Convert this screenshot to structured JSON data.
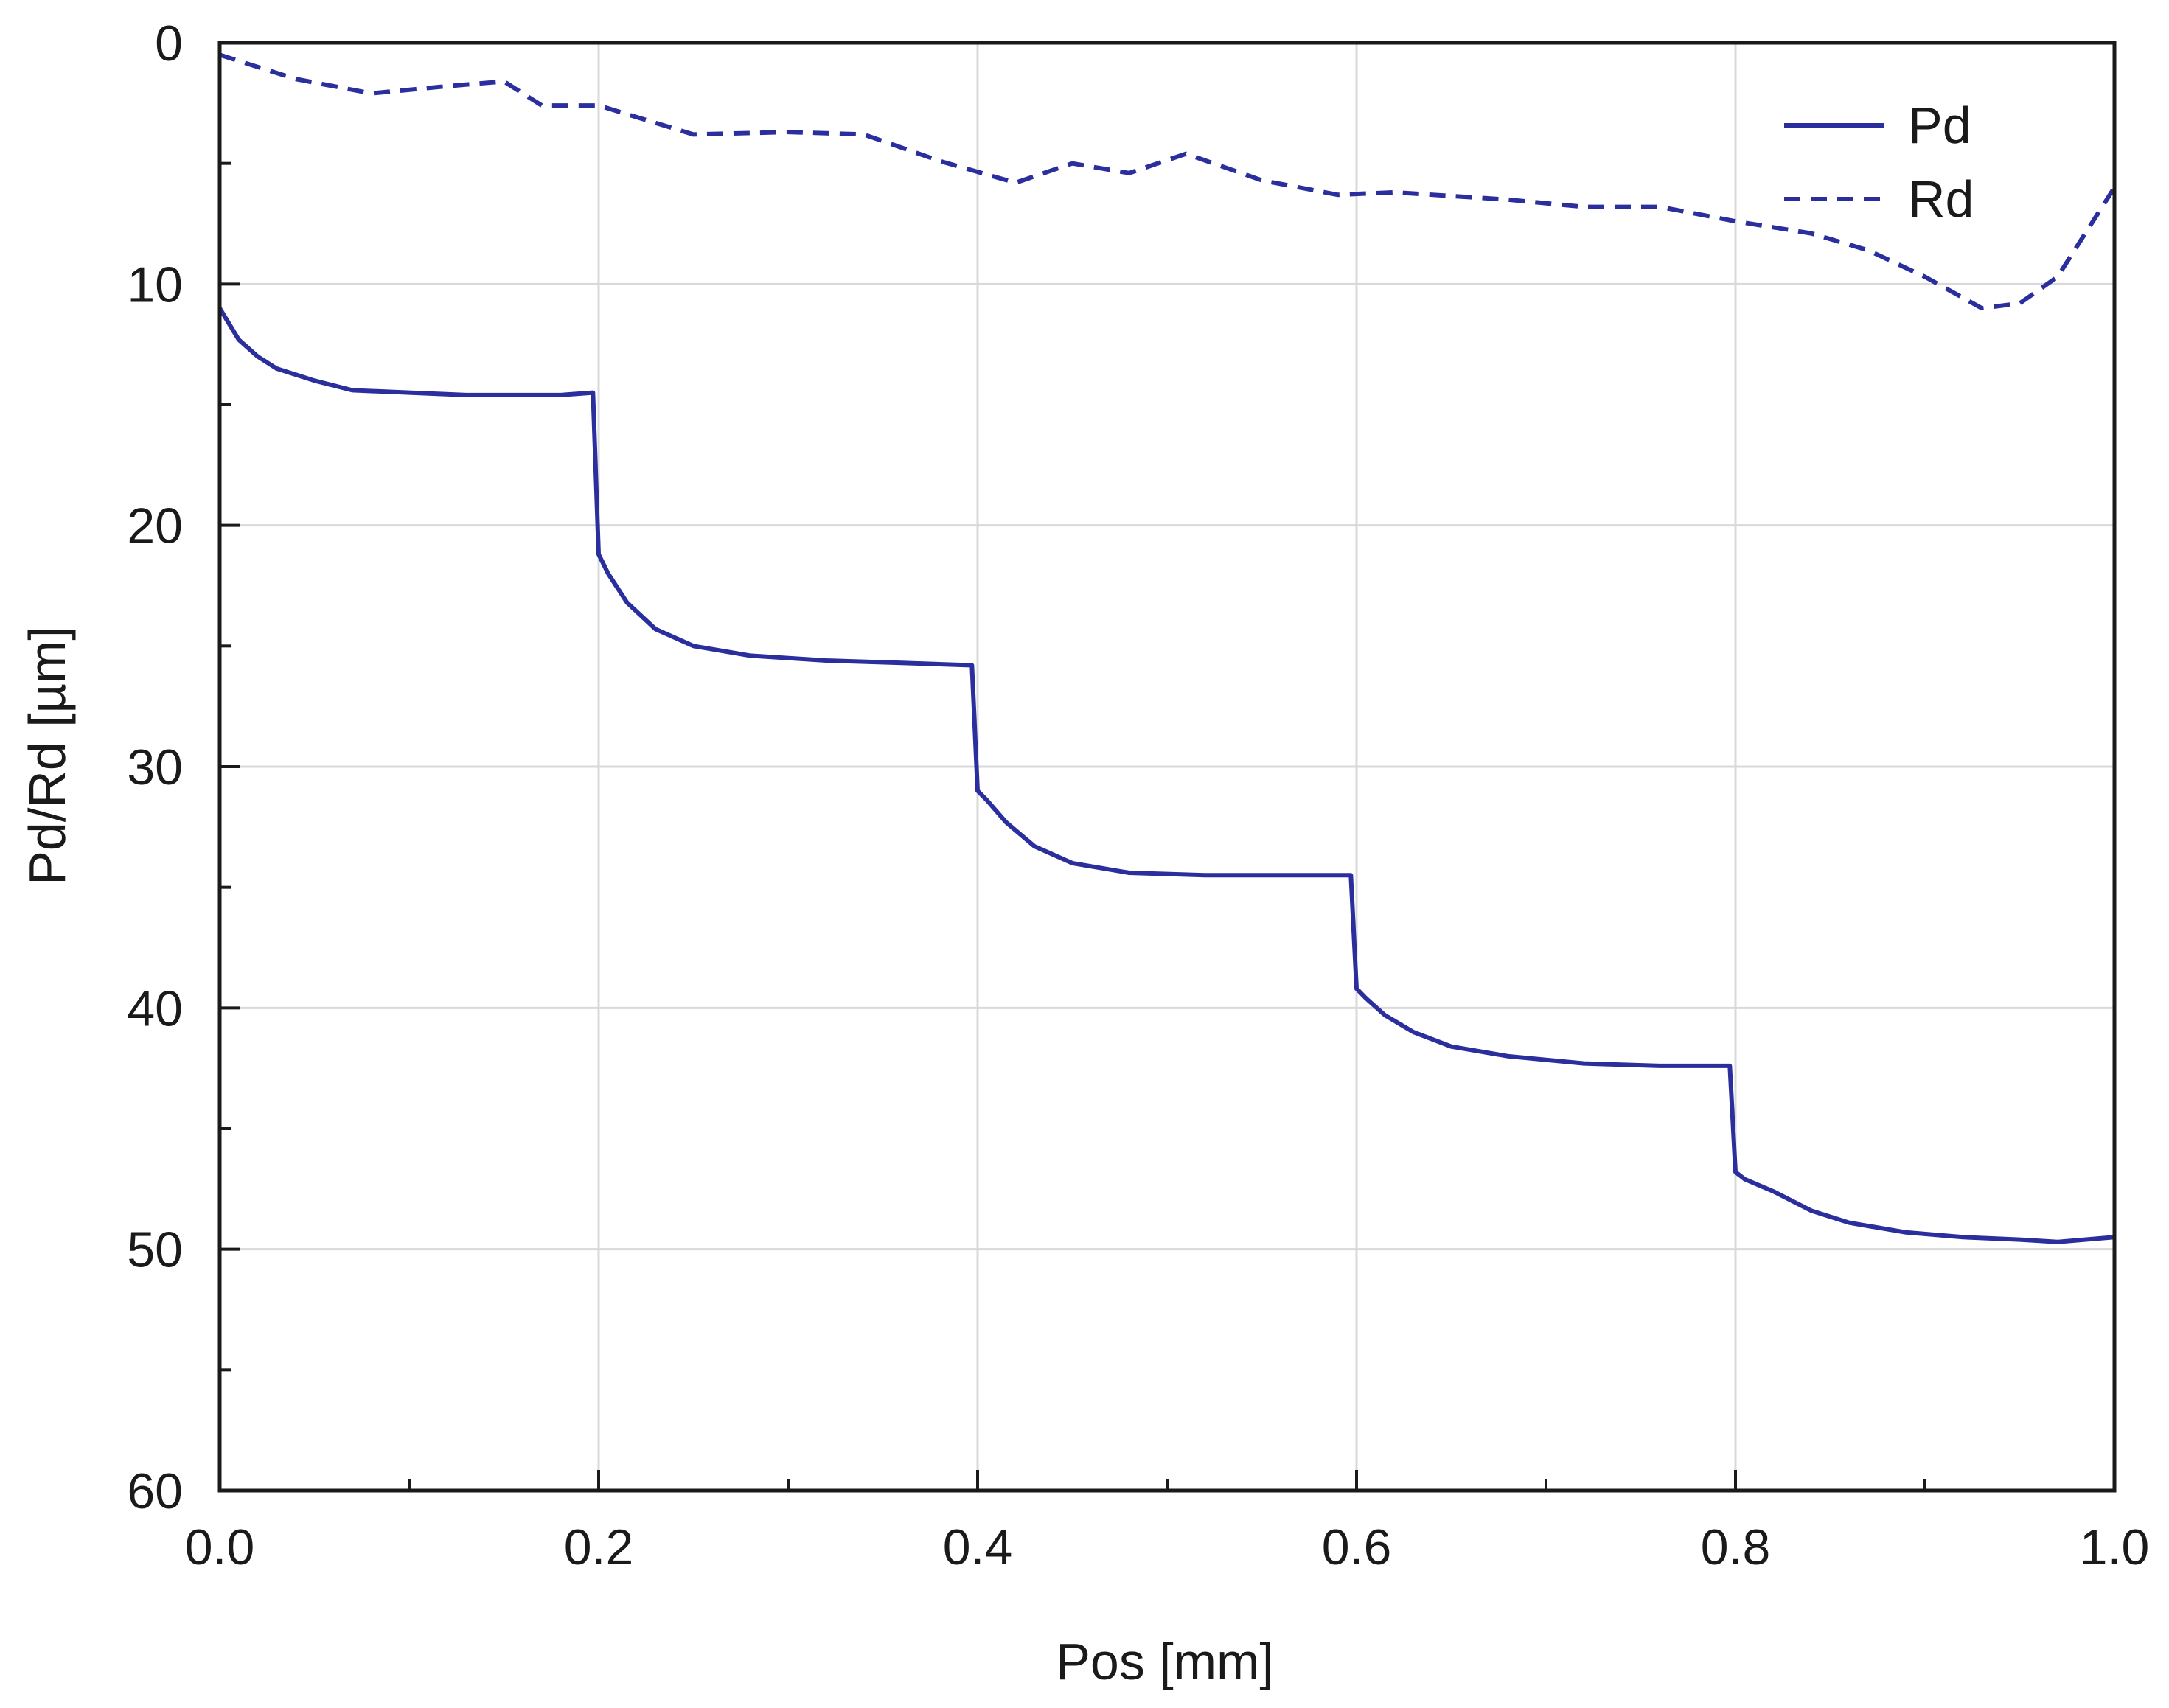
{
  "chart_data": {
    "type": "line",
    "title": "",
    "xlabel": "Pos [mm]",
    "ylabel": "Pd/Rd [µm]",
    "xlim": [
      0.0,
      1.0
    ],
    "ylim": [
      60,
      0
    ],
    "y_inverted": true,
    "grid": true,
    "legend_position": "top-right",
    "x_ticks": [
      0.0,
      0.2,
      0.4,
      0.6,
      0.8,
      1.0
    ],
    "x_tick_labels": [
      "0.0",
      "0.2",
      "0.4",
      "0.6",
      "0.8",
      "1.0"
    ],
    "y_ticks": [
      0,
      10,
      20,
      30,
      40,
      50,
      60
    ],
    "y_tick_labels": [
      "0",
      "10",
      "20",
      "30",
      "40",
      "50",
      "60"
    ],
    "colors": {
      "series": "#2b2f9e",
      "axis": "#1a1a1a",
      "grid": "#d9d9d9"
    },
    "series": [
      {
        "name": "Pd",
        "style": "solid",
        "x": [
          0.0,
          0.01,
          0.02,
          0.03,
          0.05,
          0.07,
          0.1,
          0.13,
          0.15,
          0.18,
          0.197,
          0.2,
          0.205,
          0.215,
          0.23,
          0.25,
          0.28,
          0.32,
          0.36,
          0.397,
          0.4,
          0.405,
          0.415,
          0.43,
          0.45,
          0.48,
          0.52,
          0.56,
          0.597,
          0.6,
          0.605,
          0.615,
          0.63,
          0.65,
          0.68,
          0.72,
          0.76,
          0.797,
          0.8,
          0.805,
          0.82,
          0.84,
          0.86,
          0.89,
          0.92,
          0.95,
          0.97,
          1.0
        ],
        "values": [
          11.0,
          12.3,
          13.0,
          13.5,
          14.0,
          14.4,
          14.5,
          14.6,
          14.6,
          14.6,
          14.5,
          21.2,
          22.0,
          23.2,
          24.3,
          25.0,
          25.4,
          25.6,
          25.7,
          25.8,
          31.0,
          31.4,
          32.3,
          33.3,
          34.0,
          34.4,
          34.5,
          34.5,
          34.5,
          39.2,
          39.6,
          40.3,
          41.0,
          41.6,
          42.0,
          42.3,
          42.4,
          42.4,
          46.8,
          47.1,
          47.6,
          48.4,
          48.9,
          49.3,
          49.5,
          49.6,
          49.7,
          49.5
        ]
      },
      {
        "name": "Rd",
        "style": "dashed",
        "x": [
          0.0,
          0.04,
          0.08,
          0.12,
          0.15,
          0.17,
          0.2,
          0.25,
          0.3,
          0.34,
          0.38,
          0.42,
          0.45,
          0.48,
          0.51,
          0.55,
          0.59,
          0.62,
          0.68,
          0.72,
          0.76,
          0.8,
          0.84,
          0.87,
          0.9,
          0.93,
          0.95,
          0.97,
          1.0
        ],
        "values": [
          0.5,
          1.5,
          2.1,
          1.8,
          1.6,
          2.6,
          2.6,
          3.8,
          3.7,
          3.8,
          4.9,
          5.8,
          5.0,
          5.4,
          4.6,
          5.7,
          6.3,
          6.2,
          6.5,
          6.8,
          6.8,
          7.4,
          7.9,
          8.6,
          9.7,
          11.0,
          10.8,
          9.7,
          6.0
        ]
      }
    ]
  }
}
